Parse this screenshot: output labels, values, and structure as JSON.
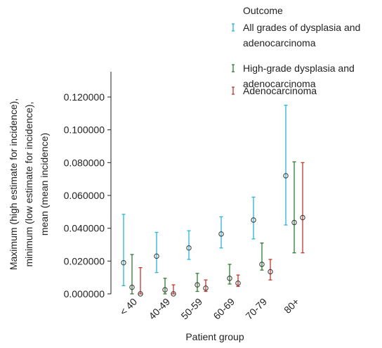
{
  "chart_data": {
    "type": "scatter",
    "subtype": "error-bar",
    "xlabel": "Patient group",
    "ylabel_lines": [
      "Maximum (high estimate for incidence),",
      "minimum (low estimate for incidence),",
      "mean (mean incidence)"
    ],
    "categories": [
      "< 40",
      "40-49",
      "50-59",
      "60-69",
      "70-79",
      "80+"
    ],
    "ylim": [
      0,
      0.13
    ],
    "y_ticks": [
      "0.000000",
      "0.020000",
      "0.040000",
      "0.060000",
      "0.080000",
      "0.100000",
      "0.120000"
    ],
    "y_tick_values": [
      0,
      0.02,
      0.04,
      0.06,
      0.08,
      0.1,
      0.12
    ],
    "grid": false,
    "legend": {
      "title": "Outcome",
      "placement": "top-right"
    },
    "series": [
      {
        "name": "All grades of dysplasia and adenocarcinoma",
        "name_lines": [
          "All grades of dysplasia and",
          "adenocarcinoma"
        ],
        "color": "#29b5d9",
        "mean": [
          0.019,
          0.023,
          0.028,
          0.0365,
          0.045,
          0.072
        ],
        "low": [
          0.005,
          0.013,
          0.021,
          0.028,
          0.0335,
          0.042
        ],
        "high": [
          0.0485,
          0.0375,
          0.0385,
          0.047,
          0.059,
          0.115
        ]
      },
      {
        "name": "High-grade dysplasia and adenocarcinoma",
        "name_lines": [
          "High-grade dysplasia and",
          "adenocarcinoma"
        ],
        "color": "#2e7d32",
        "mean": [
          0.004,
          0.0025,
          0.0055,
          0.0095,
          0.018,
          0.0435
        ],
        "low": [
          0.0,
          0.0,
          0.0015,
          0.006,
          0.0145,
          0.025
        ],
        "high": [
          0.024,
          0.0095,
          0.0125,
          0.018,
          0.031,
          0.0805
        ]
      },
      {
        "name": "Adenocarcinoma",
        "name_lines": [
          "Adenocarcinoma"
        ],
        "color": "#c0392b",
        "mean": [
          0.0,
          0.0,
          0.0035,
          0.0065,
          0.0135,
          0.0465
        ],
        "low": [
          0.0,
          0.0,
          0.0015,
          0.0045,
          0.0085,
          0.025
        ],
        "high": [
          0.016,
          0.0055,
          0.0085,
          0.0115,
          0.021,
          0.08
        ]
      }
    ]
  }
}
